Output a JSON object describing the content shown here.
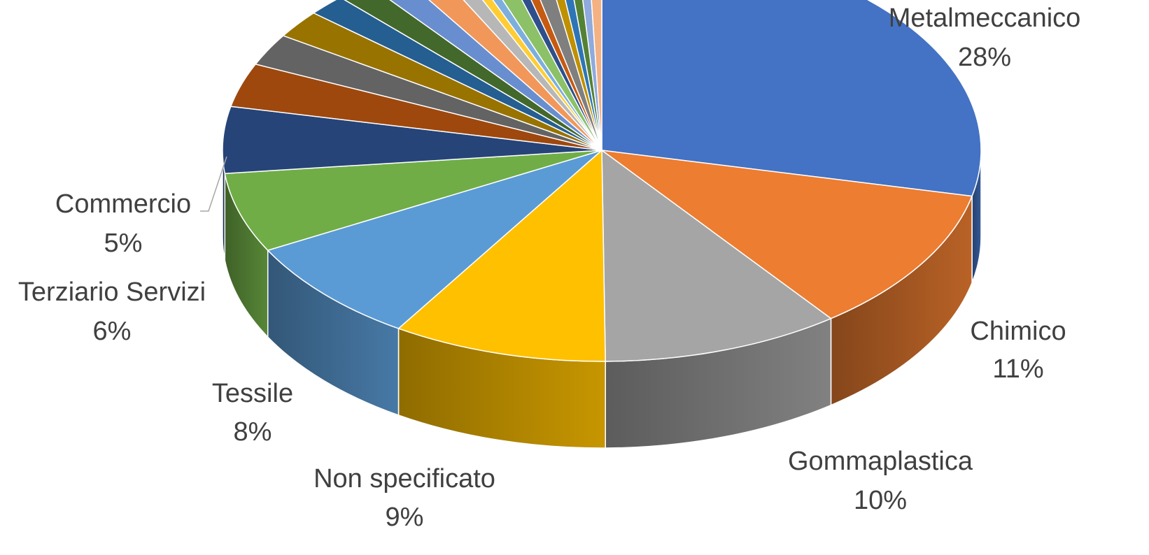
{
  "chart_data": {
    "type": "pie",
    "style": "3d-exploded-none",
    "labeled_slices": [
      {
        "name": "Metalmeccanico",
        "percent_label": "28%",
        "value": 28,
        "color": "#4472C4"
      },
      {
        "name": "Chimico",
        "percent_label": "11%",
        "value": 11,
        "color": "#ED7D31"
      },
      {
        "name": "Gommaplastica",
        "percent_label": "10%",
        "value": 10,
        "color": "#A5A5A5"
      },
      {
        "name": "Non specificato",
        "percent_label": "9%",
        "value": 9,
        "color": "#FFC000"
      },
      {
        "name": "Tessile",
        "percent_label": "8%",
        "value": 8,
        "color": "#5B9BD5"
      },
      {
        "name": "Terziario Servizi",
        "percent_label": "6%",
        "value": 6,
        "color": "#70AD47"
      },
      {
        "name": "Commercio",
        "percent_label": "5%",
        "value": 5,
        "color": "#264478"
      }
    ],
    "unlabeled_slices": [
      {
        "value": 3.3,
        "color": "#9E480E"
      },
      {
        "value": 2.4,
        "color": "#636363"
      },
      {
        "value": 2.1,
        "color": "#997300"
      },
      {
        "value": 1.6,
        "color": "#255E91"
      },
      {
        "value": 1.5,
        "color": "#43682B"
      },
      {
        "value": 1.5,
        "color": "#698ED0"
      },
      {
        "value": 1.5,
        "color": "#F1975A"
      },
      {
        "value": 0.9,
        "color": "#B7B7B7"
      },
      {
        "value": 0.5,
        "color": "#FFCD33"
      },
      {
        "value": 0.5,
        "color": "#7CAFDD"
      },
      {
        "value": 1.0,
        "color": "#8CC168"
      },
      {
        "value": 0.5,
        "color": "#2E4F8C"
      },
      {
        "value": 0.5,
        "color": "#C55A11"
      },
      {
        "value": 0.9,
        "color": "#7F7F7F"
      },
      {
        "value": 0.5,
        "color": "#BF9000"
      },
      {
        "value": 0.5,
        "color": "#2E75B6"
      },
      {
        "value": 0.5,
        "color": "#548235"
      },
      {
        "value": 0.5,
        "color": "#8FAADC"
      },
      {
        "value": 0.6,
        "color": "#F4B183"
      }
    ]
  }
}
